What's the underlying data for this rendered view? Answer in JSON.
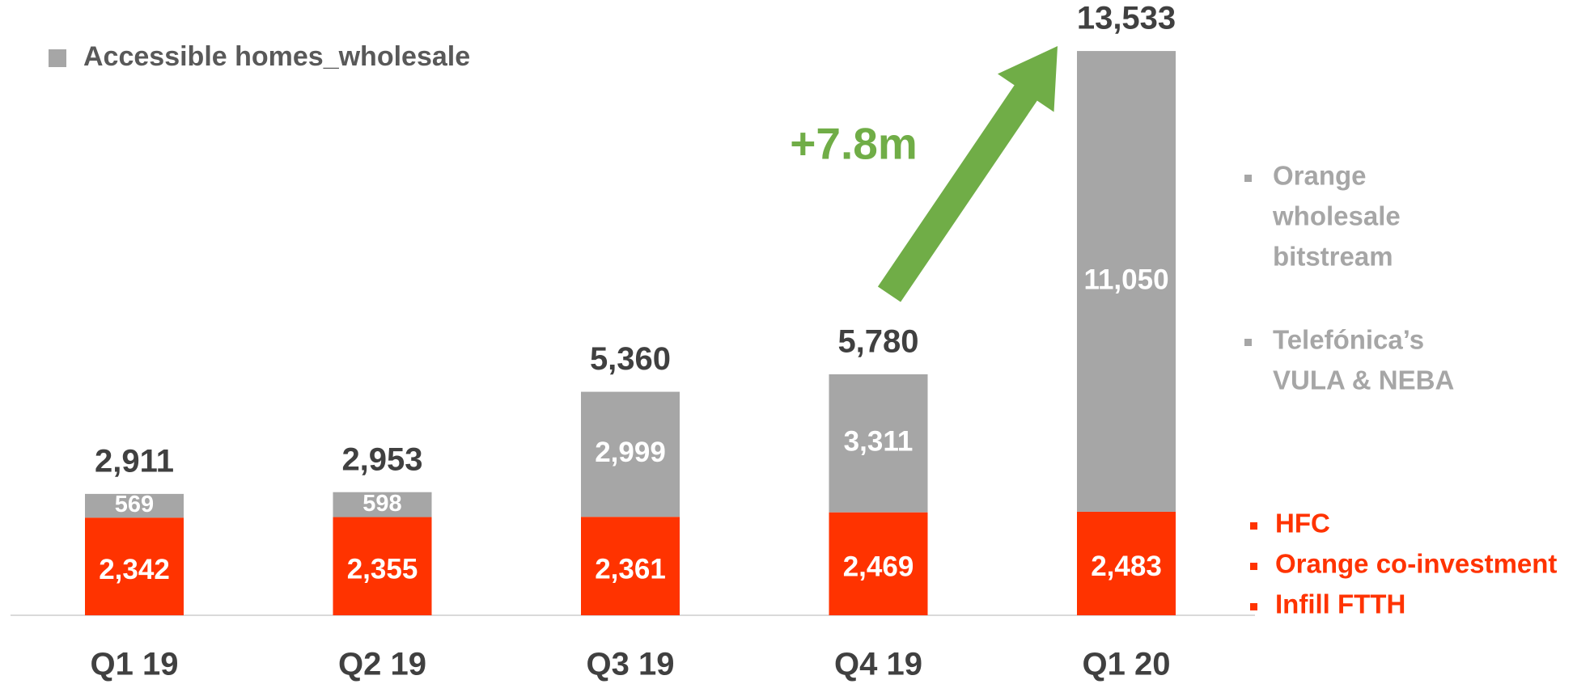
{
  "chart_data": {
    "type": "stacked_bar",
    "categories": [
      "Q1 19",
      "Q2 19",
      "Q3 19",
      "Q4 19",
      "Q1 20"
    ],
    "series": [
      {
        "color": "#ff3300",
        "values": [
          2342,
          2355,
          2361,
          2469,
          2483
        ],
        "value_labels": [
          "2,342",
          "2,355",
          "2,361",
          "2,469",
          "2,483"
        ]
      },
      {
        "name": "Accessible homes_wholesale",
        "color": "#a6a6a6",
        "values": [
          569,
          598,
          2999,
          3311,
          11050
        ],
        "value_labels": [
          "569",
          "598",
          "2,999",
          "3,311",
          "11,050"
        ]
      }
    ],
    "totals": [
      2911,
      2953,
      5360,
      5780,
      13533
    ],
    "total_labels": [
      "2,911",
      "2,953",
      "5,360",
      "5,780",
      "13,533"
    ],
    "ylim": [
      0,
      14000
    ],
    "annotation": "+7.8m",
    "annotation_color": "#70ad47",
    "wholesale_notes": [
      [
        "Orange",
        "wholesale",
        "bitstream"
      ],
      [
        "Telefónica’s",
        "VULA & NEBA"
      ]
    ],
    "own_notes": [
      "HFC",
      "Orange co-investment",
      "Infill FTTH"
    ]
  }
}
